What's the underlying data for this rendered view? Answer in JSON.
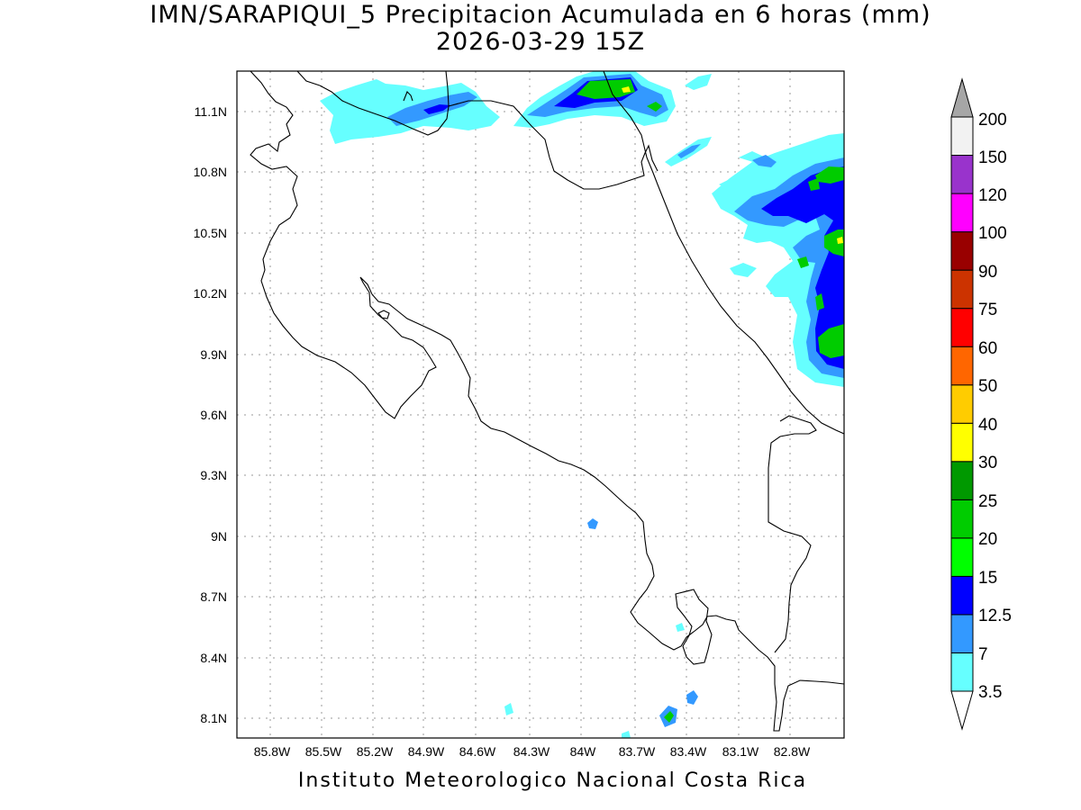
{
  "header": {
    "title": "IMN/SARAPIQUI_5 Precipitacion Acumulada en 6 horas (mm)",
    "subtitle": "2026-03-29 15Z"
  },
  "footer": {
    "credit": "Instituto Meteorologico Nacional Costa Rica"
  },
  "map": {
    "lat_ticks": [
      "11.1N",
      "10.8N",
      "10.5N",
      "10.2N",
      "9.9N",
      "9.6N",
      "9.3N",
      "9N",
      "8.7N",
      "8.4N",
      "8.1N"
    ],
    "lon_ticks": [
      "85.8W",
      "85.5W",
      "85.2W",
      "84.9W",
      "84.6W",
      "84.3W",
      "84W",
      "83.7W",
      "83.4W",
      "83.1W",
      "82.8W"
    ],
    "grid": true
  },
  "legend": {
    "levels": [
      "3.5",
      "7",
      "12.5",
      "15",
      "20",
      "25",
      "30",
      "40",
      "50",
      "60",
      "75",
      "90",
      "100",
      "120",
      "150",
      "200"
    ],
    "colors": [
      "#66ffff",
      "#3399ff",
      "#0000ff",
      "#00ff00",
      "#00cc00",
      "#009900",
      "#ffff00",
      "#ffcc00",
      "#ff6600",
      "#ff0000",
      "#cc3300",
      "#990000",
      "#ff00ff",
      "#9933cc",
      "#f2f2f2",
      "#a6a6a6"
    ],
    "under_color": "#ffffff"
  }
}
